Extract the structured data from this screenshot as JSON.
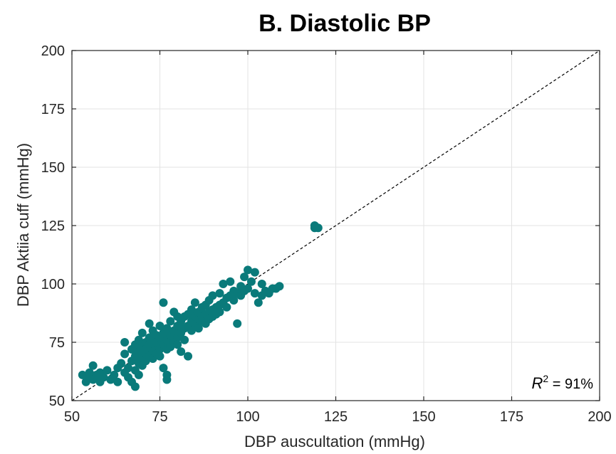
{
  "chart_data": {
    "type": "scatter",
    "title": "B. Diastolic BP",
    "xlabel": "DBP auscultation (mmHg)",
    "ylabel": "DBP Aktiia cuff (mmHg)",
    "xlim": [
      50,
      200
    ],
    "ylim": [
      50,
      200
    ],
    "xticks": [
      "50",
      "75",
      "100",
      "125",
      "150",
      "175",
      "200"
    ],
    "yticks": [
      "50",
      "75",
      "100",
      "125",
      "150",
      "175",
      "200"
    ],
    "grid": true,
    "identity_line": {
      "style": "dashed",
      "from": [
        50,
        50
      ],
      "to": [
        200,
        200
      ]
    },
    "annotation": {
      "symbol": "R",
      "superscript": "2",
      "text": " = 91%"
    },
    "marker_color": "#0a7a7a",
    "series": [
      {
        "points": [
          [
            53,
            61
          ],
          [
            54,
            58
          ],
          [
            55,
            60
          ],
          [
            55,
            62
          ],
          [
            56,
            65
          ],
          [
            56,
            59
          ],
          [
            57,
            61
          ],
          [
            58,
            58
          ],
          [
            58,
            62
          ],
          [
            59,
            60
          ],
          [
            60,
            63
          ],
          [
            61,
            59
          ],
          [
            62,
            61
          ],
          [
            63,
            64
          ],
          [
            63,
            58
          ],
          [
            64,
            66
          ],
          [
            65,
            62
          ],
          [
            65,
            70
          ],
          [
            65,
            75
          ],
          [
            66,
            64
          ],
          [
            66,
            60
          ],
          [
            67,
            67
          ],
          [
            67,
            72
          ],
          [
            67,
            58
          ],
          [
            68,
            56
          ],
          [
            68,
            63
          ],
          [
            68,
            69
          ],
          [
            68,
            74
          ],
          [
            69,
            61
          ],
          [
            69,
            66
          ],
          [
            69,
            71
          ],
          [
            69,
            76
          ],
          [
            70,
            68
          ],
          [
            70,
            73
          ],
          [
            70,
            65
          ],
          [
            70,
            79
          ],
          [
            71,
            70
          ],
          [
            71,
            75
          ],
          [
            71,
            67
          ],
          [
            71,
            72
          ],
          [
            72,
            74
          ],
          [
            72,
            69
          ],
          [
            72,
            77
          ],
          [
            72,
            83
          ],
          [
            73,
            71
          ],
          [
            73,
            76
          ],
          [
            73,
            68
          ],
          [
            73,
            80
          ],
          [
            74,
            73
          ],
          [
            74,
            78
          ],
          [
            74,
            70
          ],
          [
            74,
            75
          ],
          [
            75,
            72
          ],
          [
            75,
            77
          ],
          [
            75,
            82
          ],
          [
            75,
            69
          ],
          [
            76,
            74
          ],
          [
            76,
            79
          ],
          [
            76,
            92
          ],
          [
            76,
            64
          ],
          [
            77,
            76
          ],
          [
            77,
            81
          ],
          [
            77,
            72
          ],
          [
            77,
            59
          ],
          [
            77,
            61
          ],
          [
            78,
            78
          ],
          [
            78,
            73
          ],
          [
            78,
            84
          ],
          [
            79,
            75
          ],
          [
            79,
            80
          ],
          [
            79,
            88
          ],
          [
            80,
            77
          ],
          [
            80,
            82
          ],
          [
            80,
            86
          ],
          [
            80,
            74
          ],
          [
            81,
            79
          ],
          [
            81,
            84
          ],
          [
            81,
            71
          ],
          [
            82,
            81
          ],
          [
            82,
            86
          ],
          [
            82,
            76
          ],
          [
            83,
            82
          ],
          [
            83,
            87
          ],
          [
            83,
            69
          ],
          [
            84,
            84
          ],
          [
            84,
            80
          ],
          [
            84,
            89
          ],
          [
            85,
            83
          ],
          [
            85,
            86
          ],
          [
            85,
            92
          ],
          [
            86,
            85
          ],
          [
            86,
            81
          ],
          [
            86,
            88
          ],
          [
            87,
            86
          ],
          [
            87,
            90
          ],
          [
            87,
            84
          ],
          [
            88,
            87
          ],
          [
            88,
            91
          ],
          [
            88,
            83
          ],
          [
            89,
            88
          ],
          [
            89,
            85
          ],
          [
            89,
            93
          ],
          [
            90,
            89
          ],
          [
            90,
            86
          ],
          [
            90,
            95
          ],
          [
            91,
            90
          ],
          [
            91,
            87
          ],
          [
            92,
            91
          ],
          [
            92,
            96
          ],
          [
            92,
            88
          ],
          [
            93,
            92
          ],
          [
            93,
            100
          ],
          [
            94,
            94
          ],
          [
            94,
            90
          ],
          [
            95,
            95
          ],
          [
            95,
            101
          ],
          [
            96,
            93
          ],
          [
            96,
            97
          ],
          [
            97,
            96
          ],
          [
            97,
            83
          ],
          [
            98,
            95
          ],
          [
            98,
            99
          ],
          [
            99,
            103
          ],
          [
            99,
            97
          ],
          [
            100,
            106
          ],
          [
            100,
            98
          ],
          [
            101,
            101
          ],
          [
            102,
            96
          ],
          [
            102,
            105
          ],
          [
            103,
            92
          ],
          [
            104,
            100
          ],
          [
            104,
            95
          ],
          [
            105,
            97
          ],
          [
            106,
            96
          ],
          [
            107,
            98
          ],
          [
            108,
            98
          ],
          [
            109,
            99
          ],
          [
            119,
            125
          ],
          [
            120,
            124
          ],
          [
            119,
            124
          ]
        ]
      }
    ]
  },
  "page": {
    "r_symbol": "R",
    "r_sup": "2",
    "r_rest": " = 91%"
  }
}
